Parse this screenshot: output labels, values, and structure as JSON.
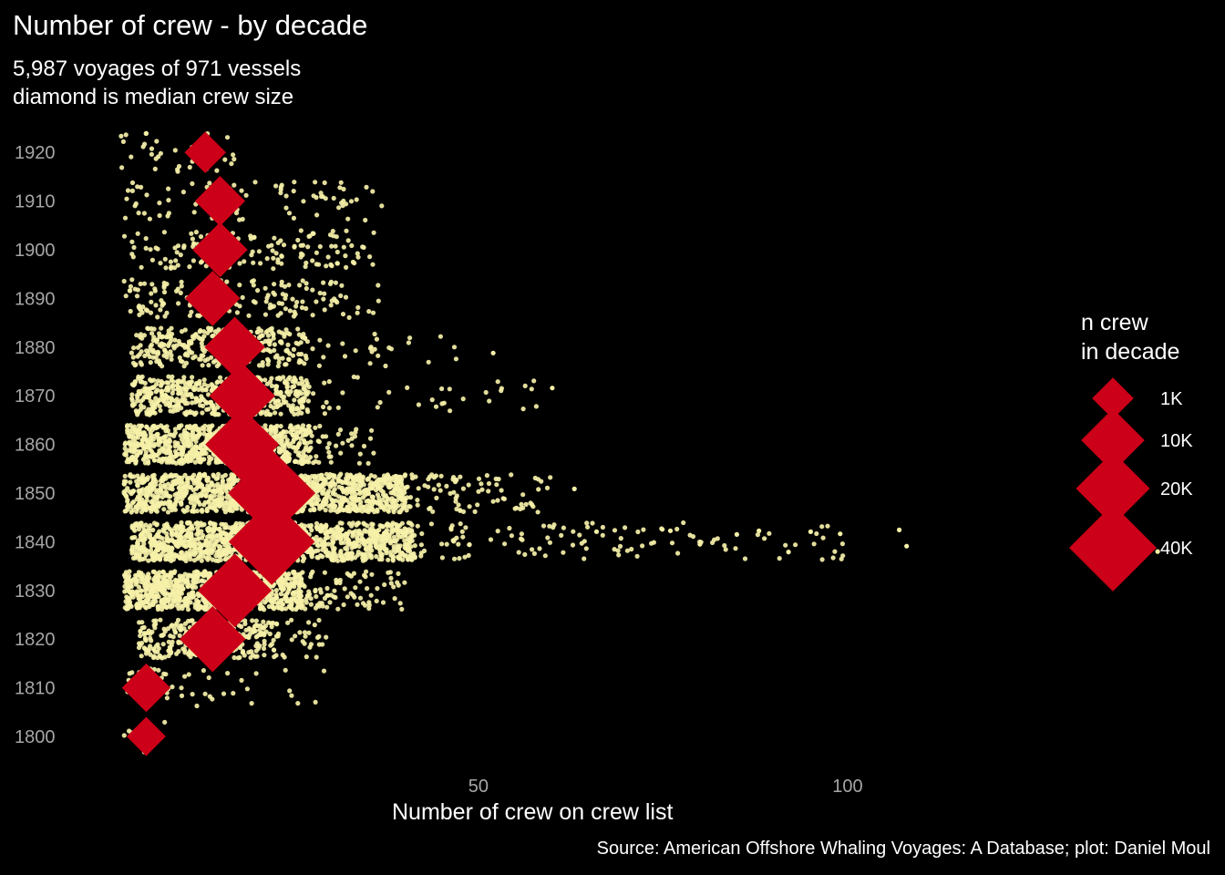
{
  "title": "Number of crew - by decade",
  "subtitle_lines": [
    "5,987 voyages of 971 vessels",
    "diamond is median crew size"
  ],
  "caption": "Source: American Offshore Whaling Voyages: A Database; plot: Daniel Moul",
  "colors": {
    "background": "#000000",
    "points": "#f5f0a8",
    "median": "#cc0018",
    "tick_text": "#a6a6a6",
    "text": "#ffffff"
  },
  "chart_data": {
    "type": "scatter",
    "title": "Number of crew - by decade",
    "xlabel": "Number of crew on crew list",
    "ylabel": "",
    "xlim": [
      1,
      143
    ],
    "x_ticks": [
      50,
      100
    ],
    "y_ticks": [
      1800,
      1810,
      1820,
      1830,
      1840,
      1850,
      1860,
      1870,
      1880,
      1890,
      1900,
      1910,
      1920
    ],
    "grid": false,
    "median_by_decade": [
      {
        "decade": 1800,
        "median_crew": 5,
        "n_crew": 700
      },
      {
        "decade": 1810,
        "median_crew": 5,
        "n_crew": 2500
      },
      {
        "decade": 1820,
        "median_crew": 14,
        "n_crew": 12000
      },
      {
        "decade": 1830,
        "median_crew": 17,
        "n_crew": 20000
      },
      {
        "decade": 1840,
        "median_crew": 22,
        "n_crew": 38000
      },
      {
        "decade": 1850,
        "median_crew": 22,
        "n_crew": 40000
      },
      {
        "decade": 1860,
        "median_crew": 18,
        "n_crew": 20000
      },
      {
        "decade": 1870,
        "median_crew": 18,
        "n_crew": 12000
      },
      {
        "decade": 1880,
        "median_crew": 17,
        "n_crew": 8000
      },
      {
        "decade": 1890,
        "median_crew": 14,
        "n_crew": 5000
      },
      {
        "decade": 1900,
        "median_crew": 15,
        "n_crew": 5000
      },
      {
        "decade": 1910,
        "median_crew": 15,
        "n_crew": 3000
      },
      {
        "decade": 1920,
        "median_crew": 13,
        "n_crew": 1000
      }
    ],
    "voyage_point_clusters": [
      {
        "decade": 1800,
        "dense_x": [
          1,
          8
        ],
        "dense_count": 10,
        "sparse_x": [
          1,
          8
        ],
        "sparse_count": 0
      },
      {
        "decade": 1810,
        "dense_x": [
          2,
          8
        ],
        "dense_count": 35,
        "sparse_x": [
          8,
          30
        ],
        "sparse_count": 25
      },
      {
        "decade": 1820,
        "dense_x": [
          4,
          21
        ],
        "dense_count": 260,
        "sparse_x": [
          21,
          30
        ],
        "sparse_count": 45
      },
      {
        "decade": 1830,
        "dense_x": [
          2,
          26
        ],
        "dense_count": 900,
        "sparse_x": [
          26,
          40
        ],
        "sparse_count": 90
      },
      {
        "decade": 1840,
        "dense_x": [
          3,
          41
        ],
        "dense_count": 1200,
        "sparse_x": [
          41,
          100
        ],
        "sparse_count": 120
      },
      {
        "decade": 1850,
        "dense_x": [
          2,
          40
        ],
        "dense_count": 1200,
        "sparse_x": [
          40,
          60
        ],
        "sparse_count": 90
      },
      {
        "decade": 1860,
        "dense_x": [
          2,
          27
        ],
        "dense_count": 800,
        "sparse_x": [
          27,
          36
        ],
        "sparse_count": 45
      },
      {
        "decade": 1870,
        "dense_x": [
          3,
          27
        ],
        "dense_count": 500,
        "sparse_x": [
          27,
          60
        ],
        "sparse_count": 35
      },
      {
        "decade": 1880,
        "dense_x": [
          3,
          27
        ],
        "dense_count": 300,
        "sparse_x": [
          27,
          52
        ],
        "sparse_count": 25
      },
      {
        "decade": 1890,
        "dense_x": [
          2,
          28
        ],
        "dense_count": 130,
        "sparse_x": [
          28,
          37
        ],
        "sparse_count": 25
      },
      {
        "decade": 1900,
        "dense_x": [
          2,
          30
        ],
        "dense_count": 110,
        "sparse_x": [
          30,
          36
        ],
        "sparse_count": 25
      },
      {
        "decade": 1910,
        "dense_x": [
          2,
          31
        ],
        "dense_count": 70,
        "sparse_x": [
          31,
          37
        ],
        "sparse_count": 15
      },
      {
        "decade": 1920,
        "dense_x": [
          1,
          17
        ],
        "dense_count": 35,
        "sparse_x": [
          1,
          17
        ],
        "sparse_count": 0
      }
    ],
    "outliers": [
      {
        "decade": 1840,
        "x": 66
      },
      {
        "decade": 1840,
        "x": 76
      },
      {
        "decade": 1840,
        "x": 80
      },
      {
        "decade": 1840,
        "x": 85
      },
      {
        "decade": 1840,
        "x": 88
      },
      {
        "decade": 1840,
        "x": 92
      },
      {
        "decade": 1840,
        "x": 95
      },
      {
        "decade": 1840,
        "x": 99
      },
      {
        "decade": 1840,
        "x": 107
      },
      {
        "decade": 1840,
        "x": 108
      },
      {
        "decade": 1840,
        "x": 142
      },
      {
        "decade": 1850,
        "x": 63
      },
      {
        "decade": 1870,
        "x": 60
      },
      {
        "decade": 1880,
        "x": 52
      }
    ],
    "legend": {
      "title_lines": [
        "n crew",
        "in decade"
      ],
      "position": "right",
      "entries": [
        {
          "label": "1K",
          "value": 1000
        },
        {
          "label": "10K",
          "value": 10000
        },
        {
          "label": "20K",
          "value": 20000
        },
        {
          "label": "40K",
          "value": 40000
        }
      ]
    }
  }
}
